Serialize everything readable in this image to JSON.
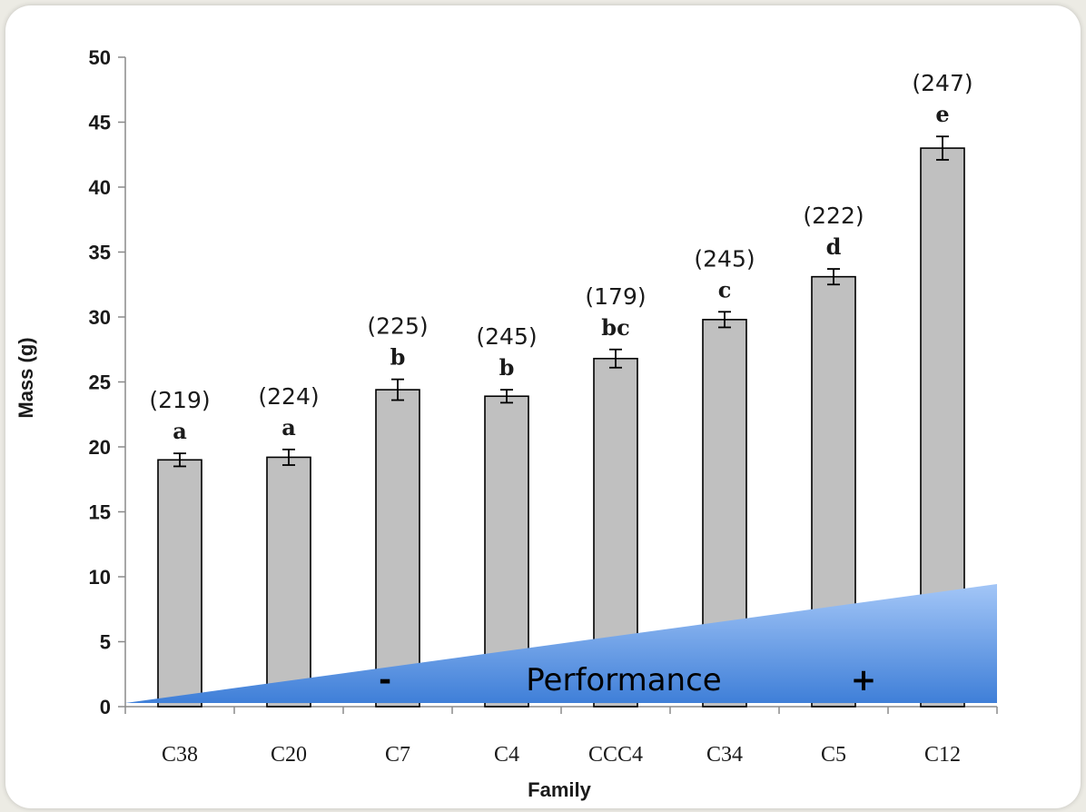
{
  "chart_data": {
    "type": "bar",
    "title": "",
    "xlabel": "Family",
    "ylabel": "Mass (g)",
    "ylim": [
      0,
      50
    ],
    "yticks": [
      "0",
      "5",
      "10",
      "15",
      "20",
      "25",
      "30",
      "35",
      "40",
      "45",
      "50"
    ],
    "categories": [
      "C38",
      "C20",
      "C7",
      "C4",
      "CCC4",
      "C34",
      "C5",
      "C12"
    ],
    "values": [
      19.0,
      19.2,
      24.4,
      23.9,
      26.8,
      29.8,
      33.1,
      43.0
    ],
    "errors": [
      0.5,
      0.6,
      0.8,
      0.5,
      0.7,
      0.6,
      0.6,
      0.9
    ],
    "counts": [
      "(219)",
      "(224)",
      "(225)",
      "(245)",
      "(179)",
      "(245)",
      "(222)",
      "(247)"
    ],
    "letters": [
      "a",
      "a",
      "b",
      "b",
      "bc",
      "c",
      "d",
      "e"
    ],
    "grid": false,
    "legend": "none",
    "bar_color": "#c0c0c0",
    "annotation": {
      "text": "Performance",
      "minus": "-",
      "plus": "+",
      "gradient_top": "#a3c6f7",
      "gradient_bottom": "#3f7fd8"
    }
  }
}
